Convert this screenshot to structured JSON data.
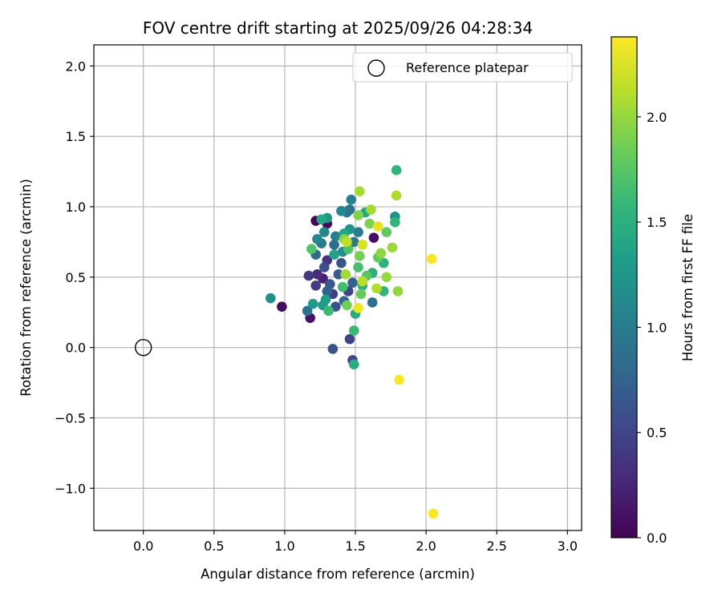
{
  "chart_data": {
    "type": "scatter",
    "title": "FOV centre drift starting at 2025/09/26 04:28:34",
    "xlabel": "Angular distance from reference (arcmin)",
    "ylabel": "Rotation from reference (arcmin)",
    "xlim": [
      -0.35,
      3.1
    ],
    "ylim": [
      -1.3,
      2.15
    ],
    "xticks": [
      0.0,
      0.5,
      1.0,
      1.5,
      2.0,
      2.5,
      3.0
    ],
    "xtick_labels": [
      "0.0",
      "0.5",
      "1.0",
      "1.5",
      "2.0",
      "2.5",
      "3.0"
    ],
    "yticks": [
      -1.0,
      -0.5,
      0.0,
      0.5,
      1.0,
      1.5,
      2.0
    ],
    "ytick_labels": [
      "−1.0",
      "−0.5",
      "0.0",
      "0.5",
      "1.0",
      "1.5",
      "2.0"
    ],
    "grid": true,
    "legend": {
      "position": "top-right",
      "label": "Reference platepar"
    },
    "reference_point": {
      "x": 0.0,
      "y": 0.0
    },
    "colorbar": {
      "label": "Hours from first FF file",
      "range": [
        0.0,
        2.38
      ],
      "ticks": [
        0.0,
        0.5,
        1.0,
        1.5,
        2.0
      ],
      "tick_labels": [
        "0.0",
        "0.5",
        "1.0",
        "1.5",
        "2.0"
      ],
      "colormap": "viridis",
      "stops": [
        "#440154",
        "#482878",
        "#3e4989",
        "#31688e",
        "#26828e",
        "#1f9e89",
        "#35b779",
        "#6ece58",
        "#b5de2b",
        "#fde725"
      ]
    },
    "points": [
      {
        "x": 1.22,
        "y": 0.9,
        "c": 0.02
      },
      {
        "x": 1.3,
        "y": 0.88,
        "c": 0.05
      },
      {
        "x": 0.98,
        "y": 0.29,
        "c": 0.08
      },
      {
        "x": 1.18,
        "y": 0.21,
        "c": 0.12
      },
      {
        "x": 1.63,
        "y": 0.78,
        "c": 0.1
      },
      {
        "x": 1.27,
        "y": 0.49,
        "c": 0.22
      },
      {
        "x": 1.23,
        "y": 0.52,
        "c": 0.28
      },
      {
        "x": 1.3,
        "y": 0.62,
        "c": 0.35
      },
      {
        "x": 1.17,
        "y": 0.51,
        "c": 0.4
      },
      {
        "x": 1.22,
        "y": 0.44,
        "c": 0.42
      },
      {
        "x": 1.34,
        "y": 0.38,
        "c": 0.45
      },
      {
        "x": 1.46,
        "y": 0.06,
        "c": 0.48
      },
      {
        "x": 1.45,
        "y": 0.4,
        "c": 0.5
      },
      {
        "x": 1.48,
        "y": -0.09,
        "c": 0.52
      },
      {
        "x": 1.34,
        "y": -0.01,
        "c": 0.6
      },
      {
        "x": 1.28,
        "y": 0.57,
        "c": 0.58
      },
      {
        "x": 1.36,
        "y": 0.29,
        "c": 0.62
      },
      {
        "x": 1.4,
        "y": 0.6,
        "c": 0.64
      },
      {
        "x": 1.32,
        "y": 0.45,
        "c": 0.66
      },
      {
        "x": 1.38,
        "y": 0.52,
        "c": 0.7
      },
      {
        "x": 1.48,
        "y": 0.46,
        "c": 0.72
      },
      {
        "x": 1.3,
        "y": 0.4,
        "c": 0.75
      },
      {
        "x": 1.42,
        "y": 0.33,
        "c": 0.78
      },
      {
        "x": 1.22,
        "y": 0.66,
        "c": 0.8
      },
      {
        "x": 1.35,
        "y": 0.73,
        "c": 0.83
      },
      {
        "x": 1.46,
        "y": 0.98,
        "c": 0.86
      },
      {
        "x": 1.62,
        "y": 0.32,
        "c": 0.88
      },
      {
        "x": 1.16,
        "y": 0.26,
        "c": 0.9
      },
      {
        "x": 1.44,
        "y": 0.96,
        "c": 0.92
      },
      {
        "x": 1.49,
        "y": 0.75,
        "c": 0.95
      },
      {
        "x": 1.26,
        "y": 0.74,
        "c": 0.98
      },
      {
        "x": 1.52,
        "y": 0.82,
        "c": 1.0
      },
      {
        "x": 1.36,
        "y": 0.79,
        "c": 1.02
      },
      {
        "x": 1.47,
        "y": 1.05,
        "c": 1.05
      },
      {
        "x": 1.4,
        "y": 0.97,
        "c": 1.08
      },
      {
        "x": 1.23,
        "y": 0.77,
        "c": 1.1
      },
      {
        "x": 1.28,
        "y": 0.82,
        "c": 1.12
      },
      {
        "x": 1.41,
        "y": 0.68,
        "c": 1.15
      },
      {
        "x": 0.9,
        "y": 0.35,
        "c": 1.18
      },
      {
        "x": 1.78,
        "y": 0.93,
        "c": 1.2
      },
      {
        "x": 1.46,
        "y": 0.84,
        "c": 1.22
      },
      {
        "x": 1.3,
        "y": 0.92,
        "c": 1.25
      },
      {
        "x": 1.2,
        "y": 0.31,
        "c": 1.28
      },
      {
        "x": 1.27,
        "y": 0.3,
        "c": 1.3
      },
      {
        "x": 1.29,
        "y": 0.34,
        "c": 1.32
      },
      {
        "x": 1.35,
        "y": 0.66,
        "c": 1.35
      },
      {
        "x": 1.42,
        "y": 0.81,
        "c": 1.38
      },
      {
        "x": 1.57,
        "y": 0.96,
        "c": 1.4
      },
      {
        "x": 1.26,
        "y": 0.91,
        "c": 1.42
      },
      {
        "x": 1.5,
        "y": 0.24,
        "c": 1.45
      },
      {
        "x": 1.49,
        "y": -0.12,
        "c": 1.46
      },
      {
        "x": 1.62,
        "y": 0.53,
        "c": 1.48
      },
      {
        "x": 1.55,
        "y": 0.44,
        "c": 1.5
      },
      {
        "x": 1.7,
        "y": 0.6,
        "c": 1.52
      },
      {
        "x": 1.79,
        "y": 1.26,
        "c": 1.55
      },
      {
        "x": 1.78,
        "y": 0.89,
        "c": 1.55
      },
      {
        "x": 1.7,
        "y": 0.4,
        "c": 1.58
      },
      {
        "x": 1.49,
        "y": 0.12,
        "c": 1.6
      },
      {
        "x": 1.31,
        "y": 0.26,
        "c": 1.62
      },
      {
        "x": 1.41,
        "y": 0.43,
        "c": 1.65
      },
      {
        "x": 1.52,
        "y": 0.57,
        "c": 1.68
      },
      {
        "x": 1.45,
        "y": 0.7,
        "c": 1.7
      },
      {
        "x": 1.19,
        "y": 0.7,
        "c": 1.72
      },
      {
        "x": 1.58,
        "y": 0.51,
        "c": 1.75
      },
      {
        "x": 1.72,
        "y": 0.82,
        "c": 1.78
      },
      {
        "x": 1.66,
        "y": 0.64,
        "c": 1.8
      },
      {
        "x": 1.54,
        "y": 0.38,
        "c": 1.82
      },
      {
        "x": 1.44,
        "y": 0.3,
        "c": 1.85
      },
      {
        "x": 1.53,
        "y": 0.65,
        "c": 1.88
      },
      {
        "x": 1.6,
        "y": 0.88,
        "c": 1.9
      },
      {
        "x": 1.52,
        "y": 0.94,
        "c": 1.92
      },
      {
        "x": 1.42,
        "y": 0.77,
        "c": 1.95
      },
      {
        "x": 1.68,
        "y": 0.67,
        "c": 1.97
      },
      {
        "x": 1.8,
        "y": 0.4,
        "c": 1.98
      },
      {
        "x": 1.72,
        "y": 0.5,
        "c": 2.0
      },
      {
        "x": 1.76,
        "y": 0.71,
        "c": 2.02
      },
      {
        "x": 1.43,
        "y": 0.52,
        "c": 2.04
      },
      {
        "x": 1.61,
        "y": 0.98,
        "c": 2.05
      },
      {
        "x": 1.53,
        "y": 1.11,
        "c": 2.06
      },
      {
        "x": 1.79,
        "y": 1.08,
        "c": 2.08
      },
      {
        "x": 1.65,
        "y": 0.42,
        "c": 2.1
      },
      {
        "x": 1.55,
        "y": 0.47,
        "c": 2.12
      },
      {
        "x": 1.44,
        "y": 0.75,
        "c": 2.15
      },
      {
        "x": 1.55,
        "y": 0.73,
        "c": 2.22
      },
      {
        "x": 1.66,
        "y": 0.86,
        "c": 2.3
      },
      {
        "x": 1.52,
        "y": 0.28,
        "c": 2.32
      },
      {
        "x": 2.04,
        "y": 0.63,
        "c": 2.36
      },
      {
        "x": 1.81,
        "y": -0.23,
        "c": 2.37
      },
      {
        "x": 2.05,
        "y": -1.18,
        "c": 2.38
      }
    ]
  }
}
